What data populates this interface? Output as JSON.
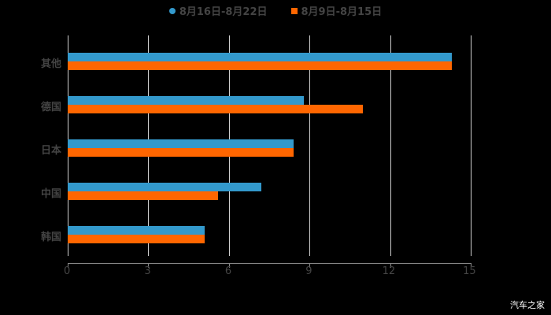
{
  "legend": [
    {
      "label": "8月16日-8月22日",
      "color": "#3399cc",
      "marker": "circle"
    },
    {
      "label": "8月9日-8月15日",
      "color": "#ff6600",
      "marker": "square"
    }
  ],
  "watermark": "汽车之家",
  "chart_data": {
    "type": "bar",
    "orientation": "horizontal",
    "categories": [
      "其他",
      "德国",
      "日本",
      "中国",
      "韩国"
    ],
    "series": [
      {
        "name": "8月16日-8月22日",
        "color": "#3399cc",
        "values": [
          14.3,
          8.8,
          8.4,
          7.2,
          5.1
        ]
      },
      {
        "name": "8月9日-8月15日",
        "color": "#ff6600",
        "values": [
          14.3,
          11.0,
          8.4,
          5.6,
          5.1
        ]
      }
    ],
    "title": "",
    "xlabel": "",
    "ylabel": "",
    "xlim": [
      0,
      15
    ],
    "xticks": [
      "0",
      "3",
      "6",
      "9",
      "12",
      "15"
    ],
    "grid": true,
    "legend_position": "top"
  }
}
